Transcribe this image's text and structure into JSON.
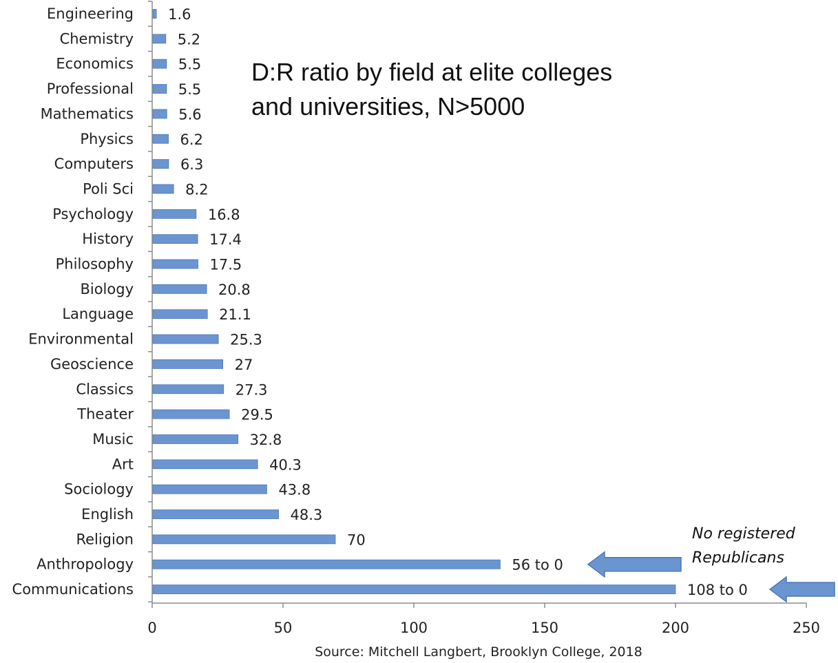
{
  "chart_data": {
    "type": "bar",
    "orientation": "horizontal",
    "title_lines": [
      "D:R ratio by field at elite colleges",
      "and universities, N>5000"
    ],
    "categories": [
      "Engineering",
      "Chemistry",
      "Economics",
      "Professional",
      "Mathematics",
      "Physics",
      "Computers",
      "Poli Sci",
      "Psychology",
      "History",
      "Philosophy",
      "Biology",
      "Language",
      "Environmental",
      "Geoscience",
      "Classics",
      "Theater",
      "Music",
      "Art",
      "Sociology",
      "English",
      "Religion",
      "Anthropology",
      "Communications"
    ],
    "values": [
      1.6,
      5.2,
      5.5,
      5.5,
      5.6,
      6.2,
      6.3,
      8.2,
      16.8,
      17.4,
      17.5,
      20.8,
      21.1,
      25.3,
      27,
      27.3,
      29.5,
      32.8,
      40.3,
      43.8,
      48.3,
      70,
      133,
      200
    ],
    "data_labels": [
      "1.6",
      "5.2",
      "5.5",
      "5.5",
      "5.6",
      "6.2",
      "6.3",
      "8.2",
      "16.8",
      "17.4",
      "17.5",
      "20.8",
      "21.1",
      "25.3",
      "27",
      "27.3",
      "29.5",
      "32.8",
      "40.3",
      "43.8",
      "48.3",
      "70",
      "56 to 0",
      "108 to 0"
    ],
    "xlim": [
      0,
      250
    ],
    "x_ticks": [
      "0",
      "50",
      "100",
      "150",
      "200",
      "250"
    ],
    "grid": false,
    "bar_color": "#6b95d1",
    "bar_edge_color": "#4a78bb",
    "annotation_lines": [
      "No registered",
      "Republicans"
    ],
    "arrow_color": "#6b95d1",
    "source": "Source: Mitchell  Langbert, Brooklyn College, 2018"
  }
}
